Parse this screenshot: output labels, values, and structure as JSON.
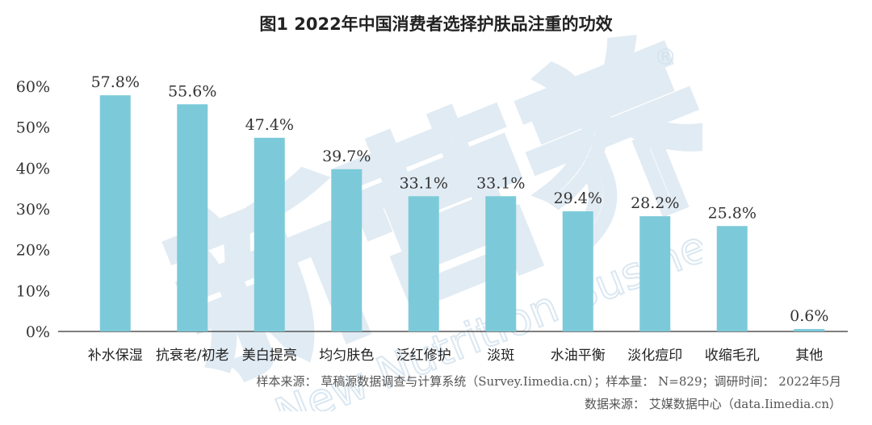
{
  "title": "图1  2022年中国消费者选择护肤品注重的功效",
  "watermark": {
    "cn_text": "新营养",
    "en_text": "New Nutrition Business",
    "mark": "®"
  },
  "notes": {
    "sample": "样本来源： 草稿源数据调查与计算系统（Survey.Iimedia.cn）；样本量： N=829；调研时间： 2022年5月",
    "source": "数据来源： 艾媒数据中心（data.Iimedia.cn）"
  },
  "colors": {
    "bar": "#7ccad9",
    "axis": "#555555",
    "watermark": "#d8e6f0"
  },
  "chart_data": {
    "type": "bar",
    "title": "图1  2022年中国消费者选择护肤品注重的功效",
    "categories": [
      "补水保湿",
      "抗衰老/初老",
      "美白提亮",
      "均匀肤色",
      "泛红修护",
      "淡斑",
      "水油平衡",
      "淡化痘印",
      "收缩毛孔",
      "其他"
    ],
    "values": [
      57.8,
      55.6,
      47.4,
      39.7,
      33.1,
      33.1,
      29.4,
      28.2,
      25.8,
      0.6
    ],
    "data_labels": [
      "57.8%",
      "55.6%",
      "47.4%",
      "39.7%",
      "33.1%",
      "33.1%",
      "29.4%",
      "28.2%",
      "25.8%",
      "0.6%"
    ],
    "yticks": [
      "0%",
      "10%",
      "20%",
      "30%",
      "40%",
      "50%",
      "60%"
    ],
    "ytick_values": [
      0,
      10,
      20,
      30,
      40,
      50,
      60
    ],
    "ylim": [
      0,
      60
    ],
    "xlabel": "",
    "ylabel": "",
    "grid": false,
    "legend": "none"
  }
}
